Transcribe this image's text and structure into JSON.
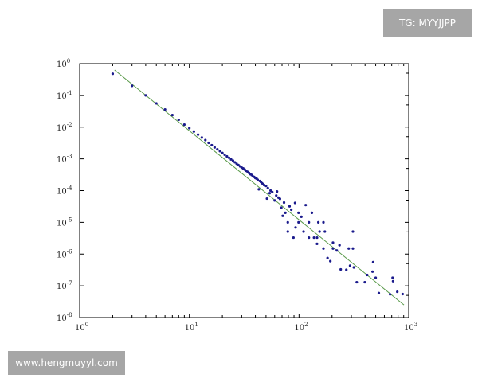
{
  "watermarks": {
    "top_right": "TG: MYYJJPP",
    "bottom_left": "www.hengmuyyl.com"
  },
  "chart_data": {
    "type": "scatter",
    "title": "",
    "xlabel": "",
    "ylabel": "",
    "xscale": "log",
    "yscale": "log",
    "xlim": [
      1,
      1000
    ],
    "ylim": [
      1e-08,
      1
    ],
    "grid": false,
    "x_ticks": [
      {
        "base": "10",
        "exp": "0",
        "value": 1
      },
      {
        "base": "10",
        "exp": "1",
        "value": 10
      },
      {
        "base": "10",
        "exp": "2",
        "value": 100
      },
      {
        "base": "10",
        "exp": "3",
        "value": 1000
      }
    ],
    "y_ticks": [
      {
        "base": "10",
        "exp": "0",
        "value": 1
      },
      {
        "base": "10",
        "exp": "-1",
        "value": 0.1
      },
      {
        "base": "10",
        "exp": "-2",
        "value": 0.01
      },
      {
        "base": "10",
        "exp": "-3",
        "value": 0.001
      },
      {
        "base": "10",
        "exp": "-4",
        "value": 0.0001
      },
      {
        "base": "10",
        "exp": "-5",
        "value": 1e-05
      },
      {
        "base": "10",
        "exp": "-6",
        "value": 1e-06
      },
      {
        "base": "10",
        "exp": "-7",
        "value": 1e-07
      },
      {
        "base": "10",
        "exp": "-8",
        "value": 1e-08
      }
    ],
    "colors": {
      "points": "#1a1a8c",
      "fit_line": "#5a9a4a",
      "axes": "#000000"
    },
    "fit_line": {
      "x": [
        2.08,
        905
      ],
      "y": [
        0.63,
        2.5e-08
      ]
    },
    "points": [
      [
        2,
        0.48
      ],
      [
        3,
        0.2
      ],
      [
        4,
        0.1
      ],
      [
        5,
        0.056
      ],
      [
        6,
        0.036
      ],
      [
        7,
        0.024
      ],
      [
        8,
        0.017
      ],
      [
        9,
        0.012
      ],
      [
        10,
        0.0093
      ],
      [
        11,
        0.0073
      ],
      [
        12,
        0.0058
      ],
      [
        13,
        0.0047
      ],
      [
        14,
        0.0039
      ],
      [
        15,
        0.0032
      ],
      [
        16,
        0.0027
      ],
      [
        17,
        0.0023
      ],
      [
        18,
        0.002
      ],
      [
        19,
        0.00175
      ],
      [
        20,
        0.00153
      ],
      [
        21,
        0.00135
      ],
      [
        22,
        0.0012
      ],
      [
        23,
        0.00108
      ],
      [
        24,
        0.00096
      ],
      [
        25,
        0.00088
      ],
      [
        26,
        0.00078
      ],
      [
        27,
        0.0007
      ],
      [
        28,
        0.00064
      ],
      [
        29,
        0.00058
      ],
      [
        30,
        0.00053
      ],
      [
        31,
        0.0005
      ],
      [
        32,
        0.00046
      ],
      [
        33,
        0.00042
      ],
      [
        34,
        0.00039
      ],
      [
        35,
        0.00036
      ],
      [
        36,
        0.00033
      ],
      [
        37,
        0.00031
      ],
      [
        38,
        0.00028
      ],
      [
        39,
        0.00027
      ],
      [
        40,
        0.00025
      ],
      [
        41,
        0.00024
      ],
      [
        42,
        0.00022
      ],
      [
        43,
        0.00011
      ],
      [
        44,
        0.0002
      ],
      [
        45,
        0.000186
      ],
      [
        46,
        0.00017
      ],
      [
        47,
        0.00016
      ],
      [
        48,
        0.00015
      ],
      [
        50,
        0.00014
      ],
      [
        51,
        5.6e-05
      ],
      [
        52,
        0.00012
      ],
      [
        54,
        8.3e-05
      ],
      [
        55,
        0.0001
      ],
      [
        57,
        9e-05
      ],
      [
        60,
        4.9e-05
      ],
      [
        62,
        7e-05
      ],
      [
        63,
        9.4e-05
      ],
      [
        65,
        6e-05
      ],
      [
        67,
        5.5e-05
      ],
      [
        69,
        2.9e-05
      ],
      [
        71,
        1.6e-05
      ],
      [
        73,
        4.2e-05
      ],
      [
        75,
        2e-05
      ],
      [
        79,
        1e-05
      ],
      [
        79,
        5.1e-06
      ],
      [
        82,
        3.2e-05
      ],
      [
        85,
        2.5e-05
      ],
      [
        89,
        3.3e-06
      ],
      [
        92,
        4.1e-05
      ],
      [
        93,
        6.9e-06
      ],
      [
        99,
        1e-05
      ],
      [
        99,
        2e-05
      ],
      [
        105,
        1.5e-05
      ],
      [
        110,
        5.1e-06
      ],
      [
        115,
        3.5e-05
      ],
      [
        123,
        1e-05
      ],
      [
        123,
        3.3e-06
      ],
      [
        131,
        2e-05
      ],
      [
        137,
        3.3e-06
      ],
      [
        146,
        3.3e-06
      ],
      [
        146,
        2.1e-06
      ],
      [
        150,
        1e-05
      ],
      [
        154,
        5.1e-06
      ],
      [
        167,
        1e-05
      ],
      [
        167,
        1.5e-06
      ],
      [
        172,
        5.1e-06
      ],
      [
        182,
        7.5e-07
      ],
      [
        193,
        6e-07
      ],
      [
        204,
        2.3e-06
      ],
      [
        204,
        1.5e-06
      ],
      [
        221,
        1.3e-06
      ],
      [
        234,
        1.9e-06
      ],
      [
        240,
        3.3e-07
      ],
      [
        270,
        3.2e-07
      ],
      [
        284,
        1.5e-06
      ],
      [
        292,
        4.3e-07
      ],
      [
        310,
        5.1e-06
      ],
      [
        310,
        1.5e-06
      ],
      [
        316,
        3.8e-07
      ],
      [
        336,
        1.3e-07
      ],
      [
        398,
        1.3e-07
      ],
      [
        418,
        2.2e-07
      ],
      [
        468,
        2.8e-07
      ],
      [
        474,
        5.6e-07
      ],
      [
        500,
        1.8e-07
      ],
      [
        534,
        5.9e-08
      ],
      [
        676,
        5.4e-08
      ],
      [
        713,
        1.8e-07
      ],
      [
        720,
        1.4e-07
      ],
      [
        787,
        6.5e-08
      ],
      [
        880,
        5.5e-08
      ]
    ]
  }
}
